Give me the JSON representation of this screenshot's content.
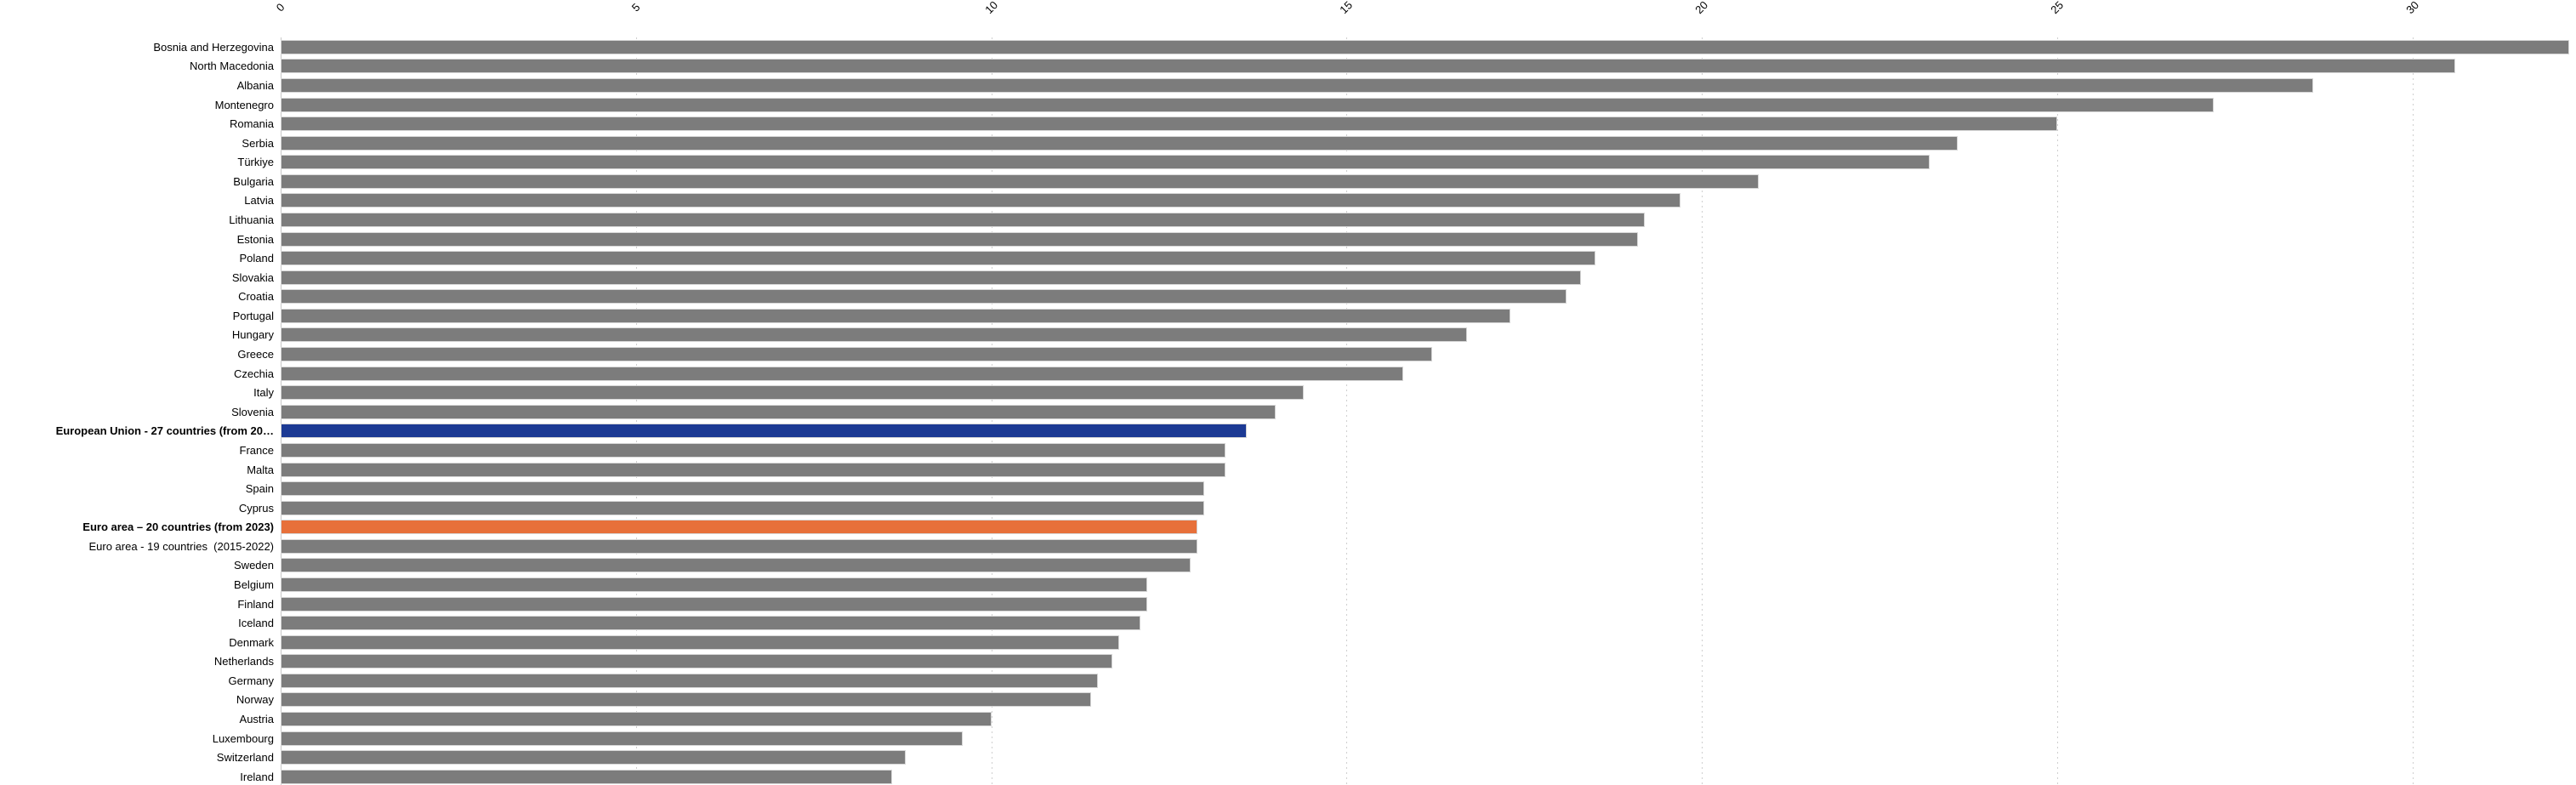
{
  "chart_data": {
    "type": "bar",
    "orientation": "horizontal",
    "legend": "none",
    "x_axis": {
      "position": "top",
      "min": 0,
      "max": 32.3,
      "ticks": [
        0,
        5,
        10,
        15,
        20,
        25,
        30
      ],
      "tick_label_rotation_deg": -45,
      "gridlines": "dashed-vertical"
    },
    "colors": {
      "default_bar": "#7c7c7c",
      "eu_highlight": "#1c3a94",
      "euro_area_highlight": "#e7703a",
      "gridline": "#cfcfcf",
      "axis_line": "#c8c8c8",
      "label_text": "#000000"
    },
    "bars": [
      {
        "label": "Bosnia and Herzegovina",
        "value": 32.2,
        "color": "#7c7c7c",
        "bold": false
      },
      {
        "label": "North Macedonia",
        "value": 30.6,
        "color": "#7c7c7c",
        "bold": false
      },
      {
        "label": "Albania",
        "value": 28.6,
        "color": "#7c7c7c",
        "bold": false
      },
      {
        "label": "Montenegro",
        "value": 27.2,
        "color": "#7c7c7c",
        "bold": false
      },
      {
        "label": "Romania",
        "value": 25.0,
        "color": "#7c7c7c",
        "bold": false
      },
      {
        "label": "Serbia",
        "value": 23.6,
        "color": "#7c7c7c",
        "bold": false
      },
      {
        "label": "Türkiye",
        "value": 23.2,
        "color": "#7c7c7c",
        "bold": false
      },
      {
        "label": "Bulgaria",
        "value": 20.8,
        "color": "#7c7c7c",
        "bold": false
      },
      {
        "label": "Latvia",
        "value": 19.7,
        "color": "#7c7c7c",
        "bold": false
      },
      {
        "label": "Lithuania",
        "value": 19.2,
        "color": "#7c7c7c",
        "bold": false
      },
      {
        "label": "Estonia",
        "value": 19.1,
        "color": "#7c7c7c",
        "bold": false
      },
      {
        "label": "Poland",
        "value": 18.5,
        "color": "#7c7c7c",
        "bold": false
      },
      {
        "label": "Slovakia",
        "value": 18.3,
        "color": "#7c7c7c",
        "bold": false
      },
      {
        "label": "Croatia",
        "value": 18.1,
        "color": "#7c7c7c",
        "bold": false
      },
      {
        "label": "Portugal",
        "value": 17.3,
        "color": "#7c7c7c",
        "bold": false
      },
      {
        "label": "Hungary",
        "value": 16.7,
        "color": "#7c7c7c",
        "bold": false
      },
      {
        "label": "Greece",
        "value": 16.2,
        "color": "#7c7c7c",
        "bold": false
      },
      {
        "label": "Czechia",
        "value": 15.8,
        "color": "#7c7c7c",
        "bold": false
      },
      {
        "label": "Italy",
        "value": 14.4,
        "color": "#7c7c7c",
        "bold": false
      },
      {
        "label": "Slovenia",
        "value": 14.0,
        "color": "#7c7c7c",
        "bold": false
      },
      {
        "label": "European Union - 27 countries (from 20…",
        "value": 13.6,
        "color": "#1c3a94",
        "bold": true
      },
      {
        "label": "France",
        "value": 13.3,
        "color": "#7c7c7c",
        "bold": false
      },
      {
        "label": "Malta",
        "value": 13.3,
        "color": "#7c7c7c",
        "bold": false
      },
      {
        "label": "Spain",
        "value": 13.0,
        "color": "#7c7c7c",
        "bold": false
      },
      {
        "label": "Cyprus",
        "value": 13.0,
        "color": "#7c7c7c",
        "bold": false
      },
      {
        "label": "Euro area – 20 countries (from 2023)",
        "value": 12.9,
        "color": "#e7703a",
        "bold": true
      },
      {
        "label": "Euro area - 19 countries  (2015-2022)",
        "value": 12.9,
        "color": "#7c7c7c",
        "bold": false
      },
      {
        "label": "Sweden",
        "value": 12.8,
        "color": "#7c7c7c",
        "bold": false
      },
      {
        "label": "Belgium",
        "value": 12.2,
        "color": "#7c7c7c",
        "bold": false
      },
      {
        "label": "Finland",
        "value": 12.2,
        "color": "#7c7c7c",
        "bold": false
      },
      {
        "label": "Iceland",
        "value": 12.1,
        "color": "#7c7c7c",
        "bold": false
      },
      {
        "label": "Denmark",
        "value": 11.8,
        "color": "#7c7c7c",
        "bold": false
      },
      {
        "label": "Netherlands",
        "value": 11.7,
        "color": "#7c7c7c",
        "bold": false
      },
      {
        "label": "Germany",
        "value": 11.5,
        "color": "#7c7c7c",
        "bold": false
      },
      {
        "label": "Norway",
        "value": 11.4,
        "color": "#7c7c7c",
        "bold": false
      },
      {
        "label": "Austria",
        "value": 10.0,
        "color": "#7c7c7c",
        "bold": false
      },
      {
        "label": "Luxembourg",
        "value": 9.6,
        "color": "#7c7c7c",
        "bold": false
      },
      {
        "label": "Switzerland",
        "value": 8.8,
        "color": "#7c7c7c",
        "bold": false
      },
      {
        "label": "Ireland",
        "value": 8.6,
        "color": "#7c7c7c",
        "bold": false
      }
    ]
  }
}
